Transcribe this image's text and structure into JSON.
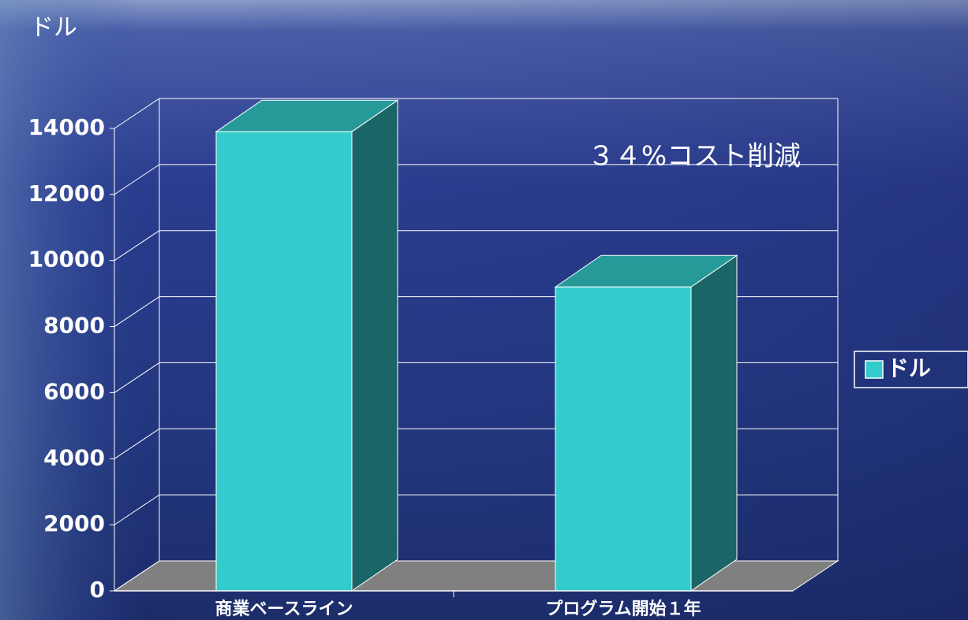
{
  "chart_data": {
    "type": "bar3d",
    "title": "ドル",
    "annotation": "３４%コスト削減",
    "categories": [
      "商業ベースライン",
      "プログラム開始１年"
    ],
    "series": [
      {
        "name": "ドル",
        "color": "#33cccc",
        "values": [
          13900,
          9200
        ]
      }
    ],
    "ylim": [
      0,
      14000
    ],
    "yticks": [
      0,
      2000,
      4000,
      6000,
      8000,
      10000,
      12000,
      14000
    ],
    "grid": true,
    "legend": "right"
  }
}
